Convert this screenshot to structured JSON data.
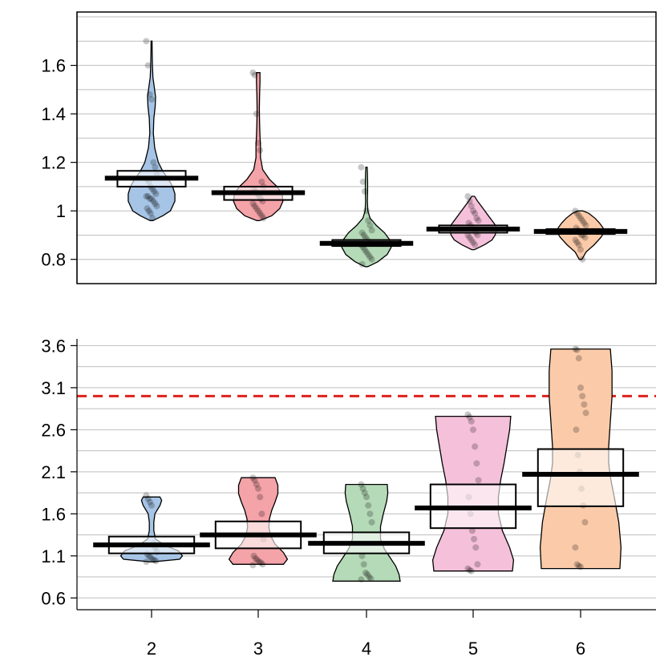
{
  "chart_data": [
    {
      "type": "violin",
      "ylim": [
        0.7,
        1.82
      ],
      "yticks": [
        0.8,
        1,
        1.2,
        1.4,
        1.6
      ],
      "ytick_labels": [
        "0.8",
        "1",
        "1.2",
        "1.4",
        "1.6"
      ],
      "grid": true,
      "categories": [
        "2",
        "3",
        "4",
        "5",
        "6"
      ],
      "groups": [
        {
          "category": "2",
          "color": "#A6C4E6",
          "mean": 1.135,
          "ci": [
            1.1,
            1.165
          ],
          "violin": [
            [
              0.96,
              0.03
            ],
            [
              0.98,
              0.25
            ],
            [
              1.0,
              0.42
            ],
            [
              1.04,
              0.52
            ],
            [
              1.07,
              0.52
            ],
            [
              1.1,
              0.47
            ],
            [
              1.13,
              0.38
            ],
            [
              1.16,
              0.26
            ],
            [
              1.2,
              0.15
            ],
            [
              1.26,
              0.07
            ],
            [
              1.32,
              0.04
            ],
            [
              1.38,
              0.05
            ],
            [
              1.43,
              0.08
            ],
            [
              1.47,
              0.09
            ],
            [
              1.51,
              0.06
            ],
            [
              1.55,
              0.03
            ],
            [
              1.6,
              0.02
            ],
            [
              1.65,
              0.015
            ],
            [
              1.7,
              0.01
            ]
          ],
          "points": [
            1.7,
            1.6,
            1.48,
            1.46,
            1.2,
            1.18,
            1.15,
            1.13,
            1.12,
            1.1,
            1.09,
            1.08,
            1.07,
            1.06,
            1.06,
            1.05,
            1.05,
            1.04,
            1.03,
            1.02,
            1.01,
            1.0,
            0.99,
            0.97
          ]
        },
        {
          "category": "3",
          "color": "#F4A3A8",
          "mean": 1.075,
          "ci": [
            1.045,
            1.1
          ],
          "violin": [
            [
              0.96,
              0.03
            ],
            [
              0.98,
              0.3
            ],
            [
              1.01,
              0.48
            ],
            [
              1.04,
              0.55
            ],
            [
              1.07,
              0.53
            ],
            [
              1.1,
              0.42
            ],
            [
              1.13,
              0.25
            ],
            [
              1.17,
              0.1
            ],
            [
              1.22,
              0.05
            ],
            [
              1.27,
              0.05
            ],
            [
              1.31,
              0.04
            ],
            [
              1.36,
              0.03
            ],
            [
              1.42,
              0.025
            ],
            [
              1.48,
              0.03
            ],
            [
              1.53,
              0.04
            ],
            [
              1.57,
              0.04
            ]
          ],
          "points": [
            1.57,
            1.56,
            1.4,
            1.28,
            1.25,
            1.12,
            1.1,
            1.09,
            1.08,
            1.07,
            1.06,
            1.05,
            1.04,
            1.03,
            1.02,
            1.01,
            1.0,
            0.99,
            0.98,
            0.97
          ]
        },
        {
          "category": "4",
          "color": "#B5DAB8",
          "mean": 0.866,
          "ci": [
            0.855,
            0.88
          ],
          "violin": [
            [
              0.77,
              0.03
            ],
            [
              0.79,
              0.25
            ],
            [
              0.82,
              0.46
            ],
            [
              0.85,
              0.55
            ],
            [
              0.88,
              0.52
            ],
            [
              0.91,
              0.4
            ],
            [
              0.94,
              0.22
            ],
            [
              0.97,
              0.08
            ],
            [
              1.0,
              0.03
            ],
            [
              1.04,
              0.02
            ],
            [
              1.08,
              0.025
            ],
            [
              1.12,
              0.025
            ],
            [
              1.16,
              0.02
            ],
            [
              1.18,
              0.015
            ]
          ],
          "points": [
            1.18,
            1.12,
            1.08,
            1.0,
            0.96,
            0.94,
            0.92,
            0.91,
            0.9,
            0.89,
            0.88,
            0.87,
            0.87,
            0.86,
            0.85,
            0.84,
            0.83,
            0.82,
            0.81,
            0.8,
            0.78
          ]
        },
        {
          "category": "5",
          "color": "#F5C0DA",
          "mean": 0.925,
          "ci": [
            0.91,
            0.94
          ],
          "violin": [
            [
              0.84,
              0.03
            ],
            [
              0.86,
              0.25
            ],
            [
              0.88,
              0.42
            ],
            [
              0.9,
              0.49
            ],
            [
              0.92,
              0.52
            ],
            [
              0.94,
              0.5
            ],
            [
              0.96,
              0.42
            ],
            [
              0.98,
              0.34
            ],
            [
              1.0,
              0.26
            ],
            [
              1.02,
              0.18
            ],
            [
              1.04,
              0.1
            ],
            [
              1.06,
              0.03
            ]
          ],
          "points": [
            1.06,
            1.04,
            1.02,
            1.0,
            0.99,
            0.97,
            0.96,
            0.95,
            0.94,
            0.93,
            0.92,
            0.91,
            0.9,
            0.9,
            0.89,
            0.88,
            0.87,
            0.86
          ]
        },
        {
          "category": "6",
          "color": "#FBCBA9",
          "mean": 0.915,
          "ci": [
            0.905,
            0.925
          ],
          "violin": [
            [
              0.8,
              0.03
            ],
            [
              0.83,
              0.12
            ],
            [
              0.86,
              0.3
            ],
            [
              0.89,
              0.45
            ],
            [
              0.91,
              0.52
            ],
            [
              0.93,
              0.5
            ],
            [
              0.95,
              0.42
            ],
            [
              0.97,
              0.32
            ],
            [
              0.99,
              0.18
            ],
            [
              1.0,
              0.05
            ]
          ],
          "points": [
            1.0,
            0.99,
            0.98,
            0.97,
            0.96,
            0.95,
            0.94,
            0.93,
            0.92,
            0.91,
            0.9,
            0.9,
            0.89,
            0.88,
            0.87,
            0.86,
            0.84,
            0.8
          ]
        }
      ]
    },
    {
      "type": "violin",
      "ylim": [
        0.46,
        3.68
      ],
      "yticks": [
        0.6,
        1.1,
        1.6,
        2.1,
        2.6,
        3.1,
        3.6
      ],
      "ytick_labels": [
        "0.6",
        "1.1",
        "1.6",
        "2.1",
        "2.6",
        "3.1",
        "3.6"
      ],
      "grid": true,
      "reference_line": {
        "y": 3.0,
        "color": "#E0201B",
        "style": "dashed"
      },
      "categories": [
        "2",
        "3",
        "4",
        "5",
        "6"
      ],
      "xtick_labels": [
        "2",
        "3",
        "4",
        "5",
        "6"
      ],
      "groups": [
        {
          "category": "2",
          "color": "#A6C4E6",
          "mean": 1.23,
          "ci": [
            1.13,
            1.33
          ],
          "violin": [
            [
              1.03,
              0.03
            ],
            [
              1.06,
              0.5
            ],
            [
              1.1,
              0.55
            ],
            [
              1.16,
              0.48
            ],
            [
              1.22,
              0.25
            ],
            [
              1.3,
              0.07
            ],
            [
              1.4,
              0.04
            ],
            [
              1.5,
              0.04
            ],
            [
              1.6,
              0.06
            ],
            [
              1.7,
              0.15
            ],
            [
              1.76,
              0.18
            ],
            [
              1.8,
              0.15
            ]
          ],
          "points": [
            1.82,
            1.78,
            1.74,
            1.7,
            1.25,
            1.2,
            1.15,
            1.12,
            1.1,
            1.08,
            1.06,
            1.05,
            1.04,
            1.03
          ]
        },
        {
          "category": "3",
          "color": "#F4A3A8",
          "mean": 1.35,
          "ci": [
            1.19,
            1.51
          ],
          "violin": [
            [
              1.0,
              0.45
            ],
            [
              1.06,
              0.52
            ],
            [
              1.14,
              0.45
            ],
            [
              1.24,
              0.3
            ],
            [
              1.34,
              0.22
            ],
            [
              1.44,
              0.19
            ],
            [
              1.54,
              0.2
            ],
            [
              1.64,
              0.24
            ],
            [
              1.74,
              0.3
            ],
            [
              1.84,
              0.35
            ],
            [
              1.94,
              0.35
            ],
            [
              2.03,
              0.3
            ]
          ],
          "points": [
            2.03,
            2.0,
            1.95,
            1.9,
            1.8,
            1.6,
            1.3,
            1.1,
            1.07,
            1.05,
            1.03,
            1.02,
            1.0,
            0.99
          ]
        },
        {
          "category": "4",
          "color": "#B5DAB8",
          "mean": 1.25,
          "ci": [
            1.13,
            1.38
          ],
          "violin": [
            [
              0.8,
              0.6
            ],
            [
              0.88,
              0.58
            ],
            [
              0.98,
              0.52
            ],
            [
              1.08,
              0.42
            ],
            [
              1.18,
              0.32
            ],
            [
              1.3,
              0.25
            ],
            [
              1.45,
              0.25
            ],
            [
              1.6,
              0.3
            ],
            [
              1.75,
              0.36
            ],
            [
              1.85,
              0.38
            ],
            [
              1.95,
              0.37
            ]
          ],
          "points": [
            1.95,
            1.9,
            1.85,
            1.8,
            1.7,
            1.6,
            1.5,
            1.1,
            1.0,
            0.9,
            0.88,
            0.85,
            0.83,
            0.82
          ]
        },
        {
          "category": "5",
          "color": "#F5C0DA",
          "mean": 1.67,
          "ci": [
            1.43,
            1.95
          ],
          "violin": [
            [
              0.92,
              0.7
            ],
            [
              1.05,
              0.72
            ],
            [
              1.2,
              0.65
            ],
            [
              1.4,
              0.52
            ],
            [
              1.6,
              0.45
            ],
            [
              1.8,
              0.45
            ],
            [
              2.0,
              0.49
            ],
            [
              2.2,
              0.55
            ],
            [
              2.4,
              0.6
            ],
            [
              2.6,
              0.65
            ],
            [
              2.76,
              0.67
            ]
          ],
          "points": [
            2.78,
            2.75,
            2.7,
            2.6,
            2.4,
            2.2,
            2.0,
            1.8,
            1.6,
            1.4,
            1.3,
            1.2,
            1.0,
            0.95,
            0.93,
            0.92
          ]
        },
        {
          "category": "6",
          "color": "#FBCBA9",
          "mean": 2.07,
          "ci": [
            1.69,
            2.37
          ],
          "violin": [
            [
              0.95,
              0.7
            ],
            [
              1.2,
              0.72
            ],
            [
              1.5,
              0.68
            ],
            [
              1.8,
              0.6
            ],
            [
              2.0,
              0.54
            ],
            [
              2.2,
              0.5
            ],
            [
              2.4,
              0.5
            ],
            [
              2.7,
              0.53
            ],
            [
              3.0,
              0.56
            ],
            [
              3.3,
              0.56
            ],
            [
              3.56,
              0.53
            ]
          ],
          "points": [
            3.56,
            3.55,
            3.45,
            3.1,
            3.0,
            2.9,
            2.8,
            2.6,
            2.3,
            2.1,
            1.9,
            1.7,
            1.5,
            1.2,
            1.0,
            0.98,
            0.97
          ]
        }
      ]
    }
  ]
}
